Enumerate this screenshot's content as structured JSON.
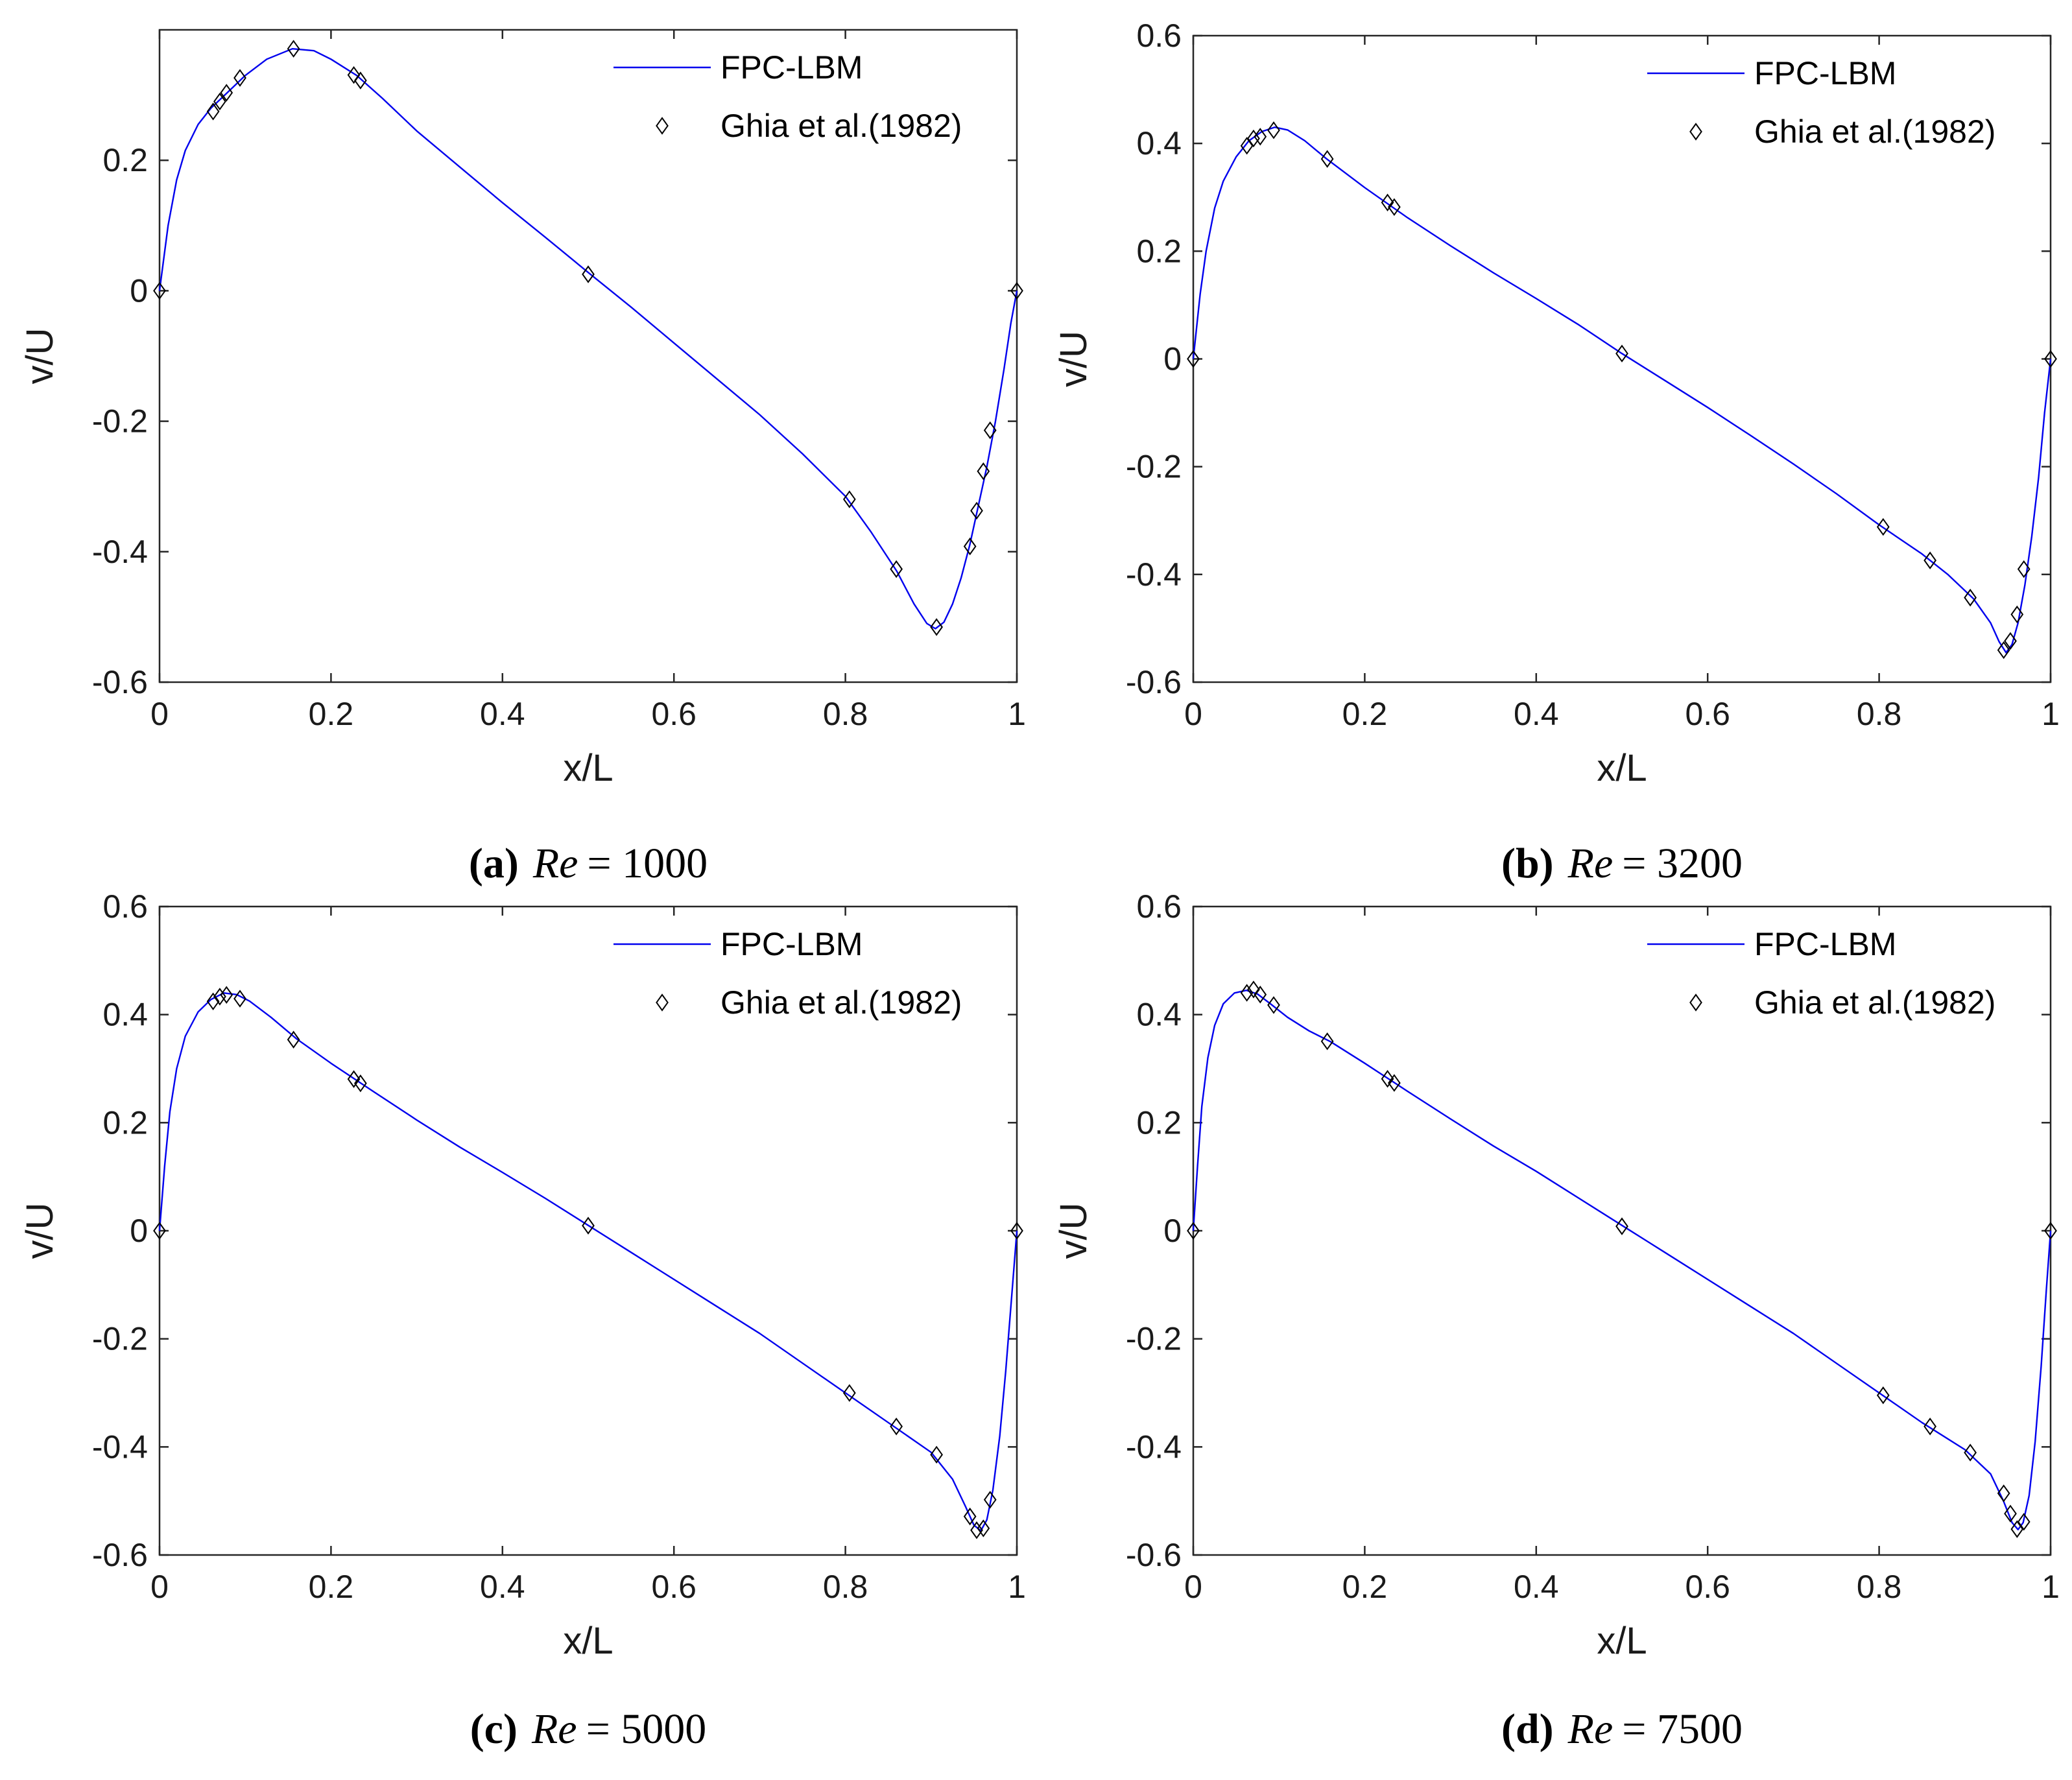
{
  "figure": {
    "colors": {
      "line": "#0000ee",
      "marker": "#000000",
      "axes": "#262626"
    }
  },
  "chart_data": [
    {
      "type": "line",
      "caption": {
        "letter": "(a)",
        "re_label": "Re",
        "re_value": "= 1000"
      },
      "xlabel": "x/L",
      "ylabel": "v/U",
      "xlim": [
        0,
        1
      ],
      "ylim": [
        -0.6,
        0.4
      ],
      "xticks": [
        0,
        0.2,
        0.4,
        0.6,
        0.8,
        1
      ],
      "xtick_labels": [
        "0",
        "0.2",
        "0.4",
        "0.6",
        "0.8",
        "1"
      ],
      "yticks": [
        -0.6,
        -0.4,
        -0.2,
        0,
        0.2
      ],
      "ytick_labels": [
        "-0.6",
        "-0.4",
        "-0.2",
        "0",
        "0.2"
      ],
      "legend": [
        "FPC-LBM",
        "Ghia et al.(1982)"
      ],
      "legend_position": "top-right",
      "series": [
        {
          "name": "FPC-LBM",
          "style": "line",
          "x": [
            0,
            0.01,
            0.02,
            0.03,
            0.045,
            0.06,
            0.08,
            0.1,
            0.125,
            0.155,
            0.18,
            0.2,
            0.23,
            0.26,
            0.3,
            0.35,
            0.4,
            0.45,
            0.5,
            0.55,
            0.6,
            0.65,
            0.7,
            0.75,
            0.8,
            0.83,
            0.86,
            0.88,
            0.895,
            0.905,
            0.915,
            0.925,
            0.935,
            0.945,
            0.955,
            0.965,
            0.975,
            0.985,
            0.993,
            1
          ],
          "y": [
            0,
            0.1,
            0.17,
            0.215,
            0.255,
            0.28,
            0.305,
            0.33,
            0.355,
            0.371,
            0.368,
            0.355,
            0.33,
            0.295,
            0.245,
            0.19,
            0.135,
            0.082,
            0.028,
            -0.025,
            -0.08,
            -0.135,
            -0.19,
            -0.25,
            -0.315,
            -0.37,
            -0.43,
            -0.48,
            -0.51,
            -0.518,
            -0.508,
            -0.48,
            -0.44,
            -0.39,
            -0.33,
            -0.27,
            -0.2,
            -0.12,
            -0.05,
            0
          ]
        },
        {
          "name": "Ghia et al.(1982)",
          "style": "markers",
          "x": [
            0,
            0.0625,
            0.0703,
            0.0781,
            0.0938,
            0.1563,
            0.2266,
            0.2344,
            0.5,
            0.8047,
            0.8594,
            0.9063,
            0.9453,
            0.9531,
            0.9609,
            0.9688,
            1
          ],
          "y": [
            0,
            0.27485,
            0.29012,
            0.30353,
            0.32627,
            0.37095,
            0.33075,
            0.32235,
            0.02526,
            -0.31966,
            -0.42665,
            -0.5155,
            -0.39188,
            -0.33714,
            -0.27669,
            -0.21388,
            0
          ]
        }
      ]
    },
    {
      "type": "line",
      "caption": {
        "letter": "(b)",
        "re_label": "Re",
        "re_value": "= 3200"
      },
      "xlabel": "x/L",
      "ylabel": "v/U",
      "xlim": [
        0,
        1
      ],
      "ylim": [
        -0.6,
        0.6
      ],
      "xticks": [
        0,
        0.2,
        0.4,
        0.6,
        0.8,
        1
      ],
      "xtick_labels": [
        "0",
        "0.2",
        "0.4",
        "0.6",
        "0.8",
        "1"
      ],
      "yticks": [
        -0.6,
        -0.4,
        -0.2,
        0,
        0.2,
        0.4,
        0.6
      ],
      "ytick_labels": [
        "-0.6",
        "-0.4",
        "-0.2",
        "0",
        "0.2",
        "0.4",
        "0.6"
      ],
      "legend": [
        "FPC-LBM",
        "Ghia et al.(1982)"
      ],
      "legend_position": "top-right",
      "series": [
        {
          "name": "FPC-LBM",
          "style": "line",
          "x": [
            0,
            0.008,
            0.015,
            0.025,
            0.035,
            0.05,
            0.065,
            0.08,
            0.095,
            0.11,
            0.13,
            0.155,
            0.2,
            0.25,
            0.3,
            0.35,
            0.4,
            0.45,
            0.5,
            0.55,
            0.6,
            0.65,
            0.7,
            0.75,
            0.8,
            0.85,
            0.88,
            0.91,
            0.93,
            0.94,
            0.948,
            0.955,
            0.962,
            0.97,
            0.978,
            0.986,
            0.993,
            1
          ],
          "y": [
            0,
            0.12,
            0.2,
            0.28,
            0.33,
            0.375,
            0.405,
            0.422,
            0.43,
            0.425,
            0.405,
            0.372,
            0.318,
            0.262,
            0.21,
            0.16,
            0.112,
            0.063,
            0.01,
            -0.04,
            -0.09,
            -0.142,
            -0.195,
            -0.25,
            -0.308,
            -0.362,
            -0.4,
            -0.445,
            -0.49,
            -0.525,
            -0.545,
            -0.53,
            -0.49,
            -0.42,
            -0.33,
            -0.22,
            -0.1,
            0
          ]
        },
        {
          "name": "Ghia et al.(1982)",
          "style": "markers",
          "x": [
            0,
            0.0625,
            0.0703,
            0.0781,
            0.0938,
            0.1563,
            0.2266,
            0.2344,
            0.5,
            0.8047,
            0.8594,
            0.9063,
            0.9453,
            0.9531,
            0.9609,
            0.9688,
            1
          ],
          "y": [
            0,
            0.3956,
            0.40917,
            0.41248,
            0.42447,
            0.37119,
            0.2903,
            0.28188,
            0.00999,
            -0.31184,
            -0.37401,
            -0.44307,
            -0.54053,
            -0.52357,
            -0.47425,
            -0.39017,
            0
          ]
        }
      ]
    },
    {
      "type": "line",
      "caption": {
        "letter": "(c)",
        "re_label": "Re",
        "re_value": "= 5000"
      },
      "xlabel": "x/L",
      "ylabel": "v/U",
      "xlim": [
        0,
        1
      ],
      "ylim": [
        -0.6,
        0.6
      ],
      "xticks": [
        0,
        0.2,
        0.4,
        0.6,
        0.8,
        1
      ],
      "xtick_labels": [
        "0",
        "0.2",
        "0.4",
        "0.6",
        "0.8",
        "1"
      ],
      "yticks": [
        -0.6,
        -0.4,
        -0.2,
        0,
        0.2,
        0.4,
        0.6
      ],
      "ytick_labels": [
        "-0.6",
        "-0.4",
        "-0.2",
        "0",
        "0.2",
        "0.4",
        "0.6"
      ],
      "legend": [
        "FPC-LBM",
        "Ghia et al.(1982)"
      ],
      "legend_position": "top-right",
      "series": [
        {
          "name": "FPC-LBM",
          "style": "line",
          "x": [
            0,
            0.006,
            0.012,
            0.02,
            0.03,
            0.045,
            0.06,
            0.075,
            0.09,
            0.105,
            0.13,
            0.16,
            0.2,
            0.25,
            0.3,
            0.35,
            0.4,
            0.45,
            0.5,
            0.55,
            0.6,
            0.65,
            0.7,
            0.75,
            0.8,
            0.85,
            0.9,
            0.925,
            0.94,
            0.95,
            0.958,
            0.965,
            0.972,
            0.98,
            0.987,
            0.994,
            1
          ],
          "y": [
            0,
            0.12,
            0.22,
            0.3,
            0.36,
            0.405,
            0.428,
            0.44,
            0.437,
            0.425,
            0.395,
            0.355,
            0.31,
            0.257,
            0.205,
            0.155,
            0.108,
            0.06,
            0.01,
            -0.04,
            -0.09,
            -0.14,
            -0.19,
            -0.245,
            -0.3,
            -0.355,
            -0.41,
            -0.46,
            -0.51,
            -0.545,
            -0.555,
            -0.535,
            -0.48,
            -0.38,
            -0.26,
            -0.12,
            0
          ]
        },
        {
          "name": "Ghia et al.(1982)",
          "style": "markers",
          "x": [
            0,
            0.0625,
            0.0703,
            0.0781,
            0.0938,
            0.1563,
            0.2266,
            0.2344,
            0.5,
            0.8047,
            0.8594,
            0.9063,
            0.9453,
            0.9531,
            0.9609,
            0.9688,
            1
          ],
          "y": [
            0,
            0.42447,
            0.43329,
            0.43648,
            0.42951,
            0.35368,
            0.28066,
            0.2728,
            0.00945,
            -0.30018,
            -0.36214,
            -0.41442,
            -0.52876,
            -0.55408,
            -0.55069,
            -0.49774,
            0
          ]
        }
      ]
    },
    {
      "type": "line",
      "caption": {
        "letter": "(d)",
        "re_label": "Re",
        "re_value": "= 7500"
      },
      "xlabel": "x/L",
      "ylabel": "v/U",
      "xlim": [
        0,
        1
      ],
      "ylim": [
        -0.6,
        0.6
      ],
      "xticks": [
        0,
        0.2,
        0.4,
        0.6,
        0.8,
        1
      ],
      "xtick_labels": [
        "0",
        "0.2",
        "0.4",
        "0.6",
        "0.8",
        "1"
      ],
      "yticks": [
        -0.6,
        -0.4,
        -0.2,
        0,
        0.2,
        0.4,
        0.6
      ],
      "ytick_labels": [
        "-0.6",
        "-0.4",
        "-0.2",
        "0",
        "0.2",
        "0.4",
        "0.6"
      ],
      "legend": [
        "FPC-LBM",
        "Ghia et al.(1982)"
      ],
      "legend_position": "top-right",
      "series": [
        {
          "name": "FPC-LBM",
          "style": "line",
          "x": [
            0,
            0.005,
            0.01,
            0.017,
            0.025,
            0.035,
            0.048,
            0.062,
            0.075,
            0.09,
            0.11,
            0.135,
            0.16,
            0.2,
            0.25,
            0.3,
            0.35,
            0.4,
            0.45,
            0.5,
            0.55,
            0.6,
            0.65,
            0.7,
            0.75,
            0.8,
            0.85,
            0.9,
            0.93,
            0.945,
            0.955,
            0.962,
            0.968,
            0.975,
            0.982,
            0.989,
            0.995,
            1
          ],
          "y": [
            0,
            0.12,
            0.23,
            0.32,
            0.38,
            0.42,
            0.44,
            0.445,
            0.438,
            0.42,
            0.395,
            0.37,
            0.35,
            0.31,
            0.258,
            0.207,
            0.157,
            0.11,
            0.06,
            0.01,
            -0.04,
            -0.09,
            -0.14,
            -0.19,
            -0.245,
            -0.3,
            -0.355,
            -0.405,
            -0.45,
            -0.5,
            -0.54,
            -0.553,
            -0.54,
            -0.49,
            -0.39,
            -0.25,
            -0.11,
            0
          ]
        },
        {
          "name": "Ghia et al.(1982)",
          "style": "markers",
          "x": [
            0,
            0.0625,
            0.0703,
            0.0781,
            0.0938,
            0.1563,
            0.2266,
            0.2344,
            0.5,
            0.8047,
            0.8594,
            0.9063,
            0.9453,
            0.9531,
            0.9609,
            0.9688,
            1
          ],
          "y": [
            0,
            0.4403,
            0.44643,
            0.4371,
            0.41768,
            0.3506,
            0.28117,
            0.27348,
            0.00824,
            -0.30448,
            -0.36213,
            -0.4105,
            -0.4859,
            -0.52343,
            -0.55216,
            -0.53858,
            0
          ]
        }
      ]
    }
  ]
}
